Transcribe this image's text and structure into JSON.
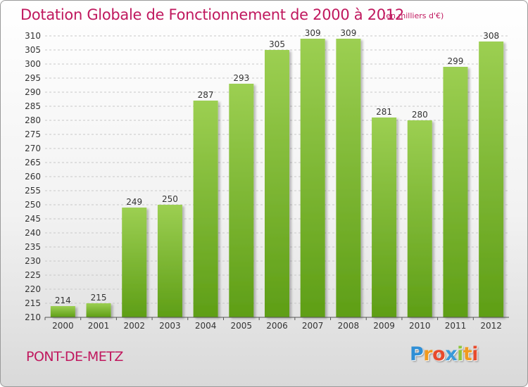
{
  "header": {
    "title": "Dotation Globale de Fonctionnement de 2000 à 2012",
    "subtitle": "(en milliers d'€)"
  },
  "footer": {
    "commune": "PONT-DE-METZ",
    "brand": "Proxiti"
  },
  "colors": {
    "title": "#c0185e",
    "bar_top": "#9ccf52",
    "bar_bottom": "#5e9e16",
    "grid": "#c8c8c8"
  },
  "chart_data": {
    "type": "bar",
    "title": "Dotation Globale de Fonctionnement de 2000 à 2012",
    "subtitle": "(en milliers d'€)",
    "categories": [
      "2000",
      "2001",
      "2002",
      "2003",
      "2004",
      "2005",
      "2006",
      "2007",
      "2008",
      "2009",
      "2010",
      "2011",
      "2012"
    ],
    "values": [
      214,
      215,
      249,
      250,
      287,
      293,
      305,
      309,
      309,
      281,
      280,
      299,
      308
    ],
    "ylim": [
      210,
      310
    ],
    "ytick_step": 5,
    "grid": true,
    "data_labels": true
  }
}
